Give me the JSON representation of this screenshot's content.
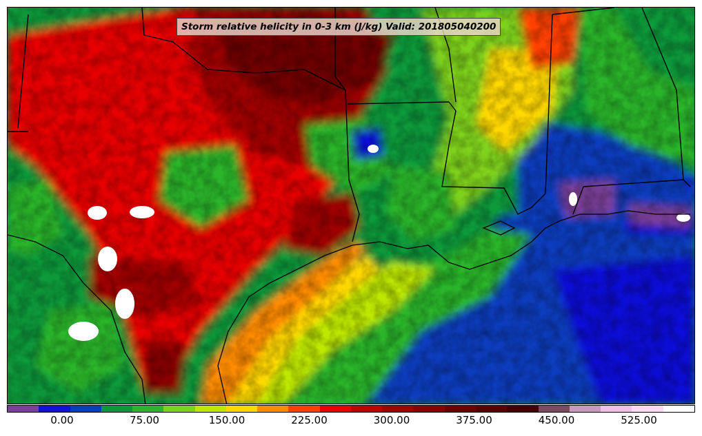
{
  "map": {
    "title": "Storm relative helicity in 0-3 km (J/kg) Valid: 201805040200",
    "variable": "Storm relative helicity",
    "layer": "0-3 km",
    "units": "J/kg",
    "valid_time": "201805040200"
  },
  "colorbar": {
    "colors": [
      "#7b3f98",
      "#1010d8",
      "#0a3cbe",
      "#0a9a3a",
      "#2bb52b",
      "#7fd21a",
      "#bfe800",
      "#ffd800",
      "#ff8c00",
      "#ff4000",
      "#e80000",
      "#c00000",
      "#a00000",
      "#8a0000",
      "#700000",
      "#5a0000",
      "#3e0000",
      "#7a4a5e",
      "#c89ac0",
      "#f0c0e8",
      "#ffd8f4",
      "#ffffff"
    ],
    "ticks": [
      "0.00",
      "75.00",
      "150.00",
      "225.00",
      "300.00",
      "375.00",
      "450.00",
      "525.00"
    ]
  }
}
